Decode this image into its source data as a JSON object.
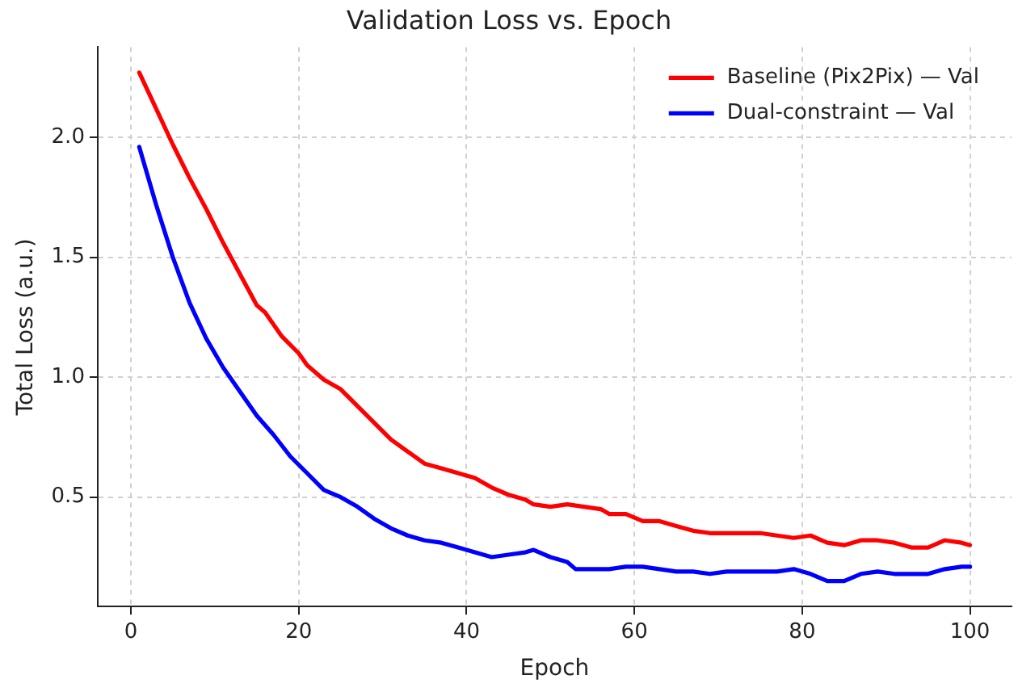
{
  "chart_data": {
    "type": "line",
    "title": "Validation Loss vs. Epoch",
    "xlabel": "Epoch",
    "ylabel": "Total Loss (a.u.)",
    "xlim": [
      -3.95,
      104.95
    ],
    "ylim": [
      0.044,
      2.376
    ],
    "xticks": [
      0,
      20,
      40,
      60,
      80,
      100
    ],
    "yticks": [
      {
        "value": 0.5,
        "label": "0.5"
      },
      {
        "value": 1,
        "label": "1.0"
      },
      {
        "value": 1.5,
        "label": "1.5"
      },
      {
        "value": 2,
        "label": "2.0"
      }
    ],
    "grid": true,
    "legend": "top right",
    "marker": "none",
    "line_style": "solid",
    "series": [
      {
        "name": "Baseline (Pix2Pix) — Val",
        "color": "#ff0000",
        "x": [
          1,
          3,
          5,
          7,
          9,
          11,
          13,
          15,
          16,
          18,
          20,
          21,
          23,
          25,
          27,
          29,
          31,
          33,
          35,
          37,
          39,
          41,
          43,
          45,
          47,
          48,
          50,
          52,
          54,
          56,
          57,
          59,
          61,
          63,
          65,
          67,
          69,
          71,
          73,
          75,
          77,
          79,
          81,
          83,
          85,
          87,
          89,
          91,
          93,
          95,
          97,
          99,
          100
        ],
        "values": [
          2.27,
          2.12,
          1.97,
          1.83,
          1.7,
          1.56,
          1.43,
          1.3,
          1.27,
          1.17,
          1.1,
          1.05,
          0.99,
          0.95,
          0.88,
          0.81,
          0.74,
          0.69,
          0.64,
          0.62,
          0.6,
          0.58,
          0.54,
          0.51,
          0.49,
          0.47,
          0.46,
          0.47,
          0.46,
          0.45,
          0.43,
          0.43,
          0.4,
          0.4,
          0.38,
          0.36,
          0.35,
          0.35,
          0.35,
          0.35,
          0.34,
          0.33,
          0.34,
          0.31,
          0.3,
          0.32,
          0.32,
          0.31,
          0.29,
          0.29,
          0.32,
          0.31,
          0.3
        ]
      },
      {
        "name": "Dual-constraint — Val",
        "color": "#0000ff",
        "x": [
          1,
          3,
          5,
          7,
          9,
          11,
          13,
          15,
          17,
          19,
          21,
          23,
          25,
          27,
          29,
          31,
          33,
          35,
          37,
          39,
          41,
          43,
          45,
          47,
          48,
          50,
          52,
          53,
          55,
          57,
          59,
          61,
          63,
          65,
          67,
          69,
          71,
          73,
          75,
          77,
          79,
          81,
          83,
          85,
          87,
          89,
          91,
          93,
          95,
          97,
          99,
          100
        ],
        "values": [
          1.96,
          1.72,
          1.5,
          1.31,
          1.16,
          1.04,
          0.94,
          0.84,
          0.76,
          0.67,
          0.6,
          0.53,
          0.5,
          0.46,
          0.41,
          0.37,
          0.34,
          0.32,
          0.31,
          0.29,
          0.27,
          0.25,
          0.26,
          0.27,
          0.28,
          0.25,
          0.23,
          0.2,
          0.2,
          0.2,
          0.21,
          0.21,
          0.2,
          0.19,
          0.19,
          0.18,
          0.19,
          0.19,
          0.19,
          0.19,
          0.2,
          0.18,
          0.15,
          0.15,
          0.18,
          0.19,
          0.18,
          0.18,
          0.18,
          0.2,
          0.21,
          0.21
        ]
      }
    ]
  }
}
